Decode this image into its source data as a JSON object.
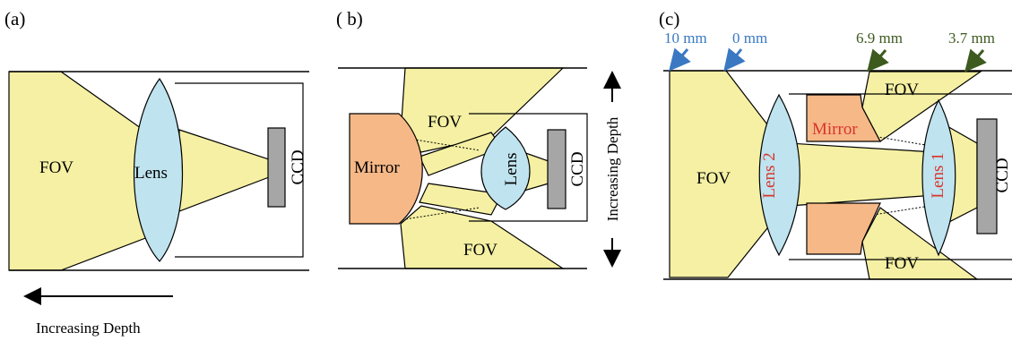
{
  "panels": {
    "a": {
      "label": "(a)",
      "fov": "FOV",
      "lens": "Lens",
      "ccd": "CCD",
      "depth": "Increasing Depth"
    },
    "b": {
      "label": "( b)",
      "fov_top": "FOV",
      "fov_bottom": "FOV",
      "mirror": "Mirror",
      "lens": "Lens",
      "ccd": "CCD",
      "depth": "Increasing Depth"
    },
    "c": {
      "label": "(c)",
      "fov_main": "FOV",
      "fov_top": "FOV",
      "fov_bottom": "FOV",
      "lens2": "Lens 2",
      "lens1": "Lens 1",
      "mirror": "Mirror",
      "ccd": "CCD",
      "measures": [
        {
          "text": "10 mm",
          "color": "#3a78c2"
        },
        {
          "text": "0 mm",
          "color": "#3a78c2"
        },
        {
          "text": "6.9 mm",
          "color": "#3d5a1f"
        },
        {
          "text": "3.7 mm",
          "color": "#3d5a1f"
        }
      ]
    }
  },
  "colors": {
    "fov": "#f5f0a3",
    "lens": "#bfe3ef",
    "mirror": "#f6b887",
    "ccd": "#a6a6a6",
    "label_red": "#d9342b"
  }
}
